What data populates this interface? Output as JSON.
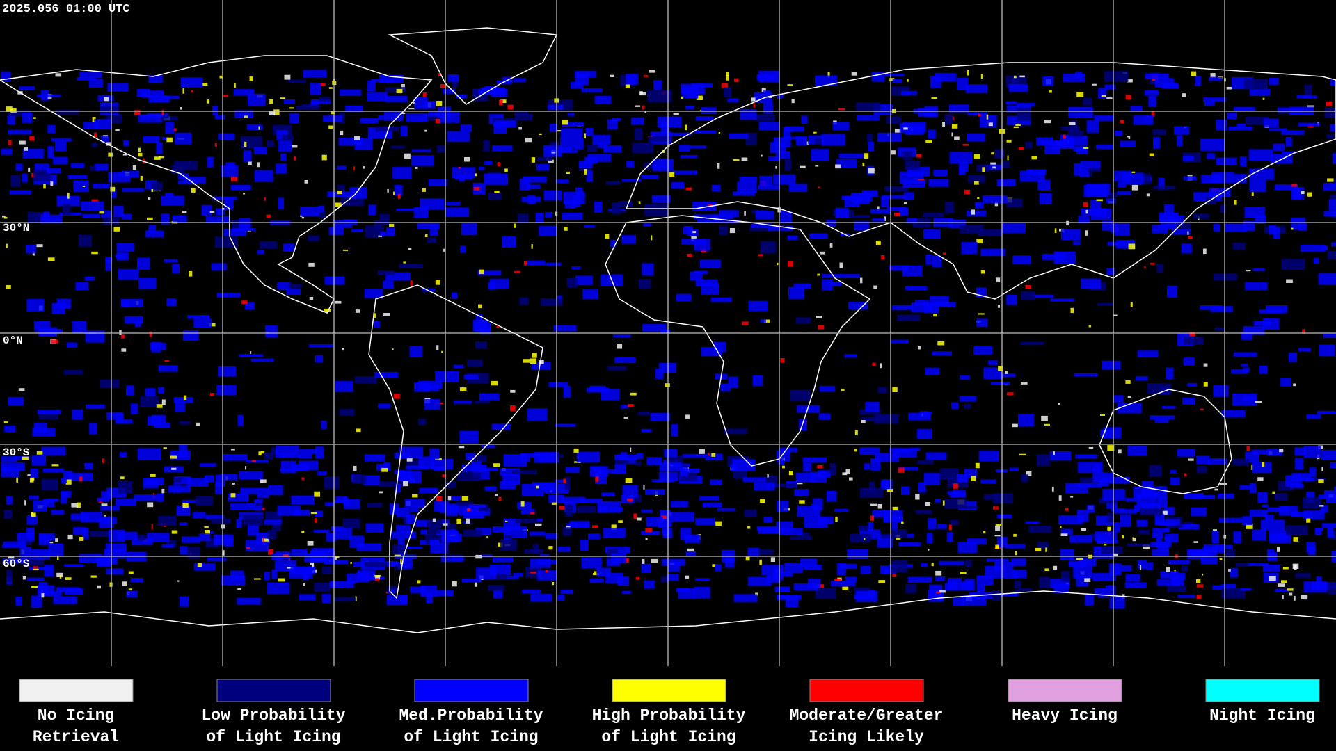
{
  "header": {
    "timestamp": "2025.056 01:00 UTC"
  },
  "map": {
    "latitude_labels": [
      "30°N",
      "0°N",
      "30°S",
      "60°S"
    ]
  },
  "legend": {
    "items": [
      {
        "lines": [
          "No Icing",
          "Retrieval"
        ],
        "color": "#f0f0f0"
      },
      {
        "lines": [
          "Low Probability",
          "of Light Icing"
        ],
        "color": "#00007f"
      },
      {
        "lines": [
          "Med.Probability",
          "of Light Icing"
        ],
        "color": "#0000ff"
      },
      {
        "lines": [
          "High Probability",
          "of Light Icing"
        ],
        "color": "#ffff00"
      },
      {
        "lines": [
          "Moderate/Greater",
          "Icing Likely"
        ],
        "color": "#ff0000"
      },
      {
        "lines": [
          "Heavy Icing"
        ],
        "color": "#e0a0e0"
      },
      {
        "lines": [
          "Night Icing"
        ],
        "color": "#00ffff"
      }
    ]
  }
}
